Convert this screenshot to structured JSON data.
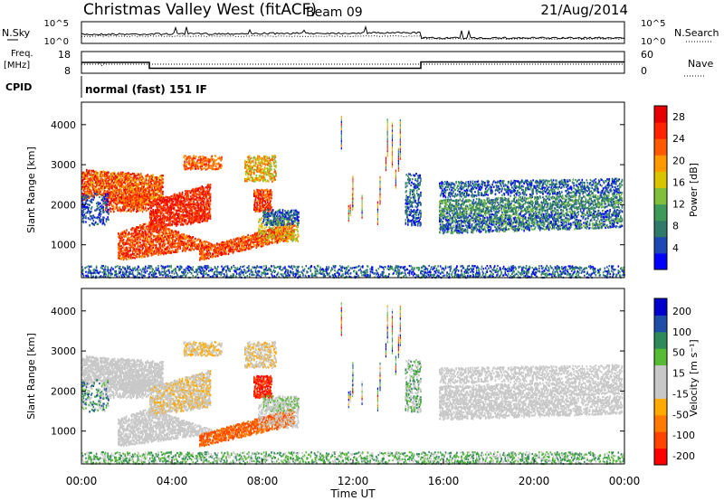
{
  "header": {
    "title": "Christmas Valley West (fitACF)",
    "beam": "Beam 09",
    "date": "21/Aug/2014"
  },
  "chart_data": [
    {
      "type": "line",
      "panel": "noise",
      "left_label": "N.Sky",
      "right_label": "N.Search",
      "left_ticks": [
        "10^5",
        "10^0"
      ],
      "right_ticks": [
        "10^5",
        "10^0"
      ]
    },
    {
      "type": "line",
      "panel": "frequency",
      "left_label": [
        "Freq.",
        "[MHz]"
      ],
      "right_label": "Nave",
      "left_ticks": [
        18,
        8
      ],
      "right_ticks": [
        60,
        0
      ],
      "series": [
        {
          "name": "Freq.",
          "x": [
            0,
            3.0,
            3.0,
            15.0,
            15.0,
            24
          ],
          "values": [
            13.0,
            13.0,
            10.3,
            10.3,
            13.2,
            13.2
          ]
        },
        {
          "name": "Nave",
          "x": [
            0,
            24
          ],
          "values": [
            25,
            25
          ]
        }
      ]
    },
    {
      "type": "table",
      "panel": "cpid",
      "label": "CPID",
      "text": "normal (fast) 151 IF"
    },
    {
      "type": "heatmap",
      "panel": "power",
      "ylabel": "Slant Range [km]",
      "yticks": [
        1000,
        2000,
        3000,
        4000
      ],
      "ylim": [
        180,
        4560
      ],
      "xlim": [
        0,
        24
      ],
      "colorbar": {
        "label": "Power [dB]",
        "ticks": [
          4,
          8,
          12,
          16,
          20,
          24,
          28
        ],
        "range": [
          0,
          30
        ]
      }
    },
    {
      "type": "heatmap",
      "panel": "velocity",
      "ylabel": "Slant Range [km]",
      "yticks": [
        1000,
        2000,
        3000,
        4000
      ],
      "ylim": [
        180,
        4560
      ],
      "xlim": [
        0,
        24
      ],
      "xlabel": "Time UT",
      "xticks": [
        "00:00",
        "04:00",
        "08:00",
        "12:00",
        "16:00",
        "20:00",
        "00:00"
      ],
      "colorbar": {
        "label": "Velocity [m s⁻¹]",
        "ticks": [
          200,
          100,
          50,
          15,
          -15,
          -50,
          -100,
          -200
        ]
      }
    }
  ]
}
